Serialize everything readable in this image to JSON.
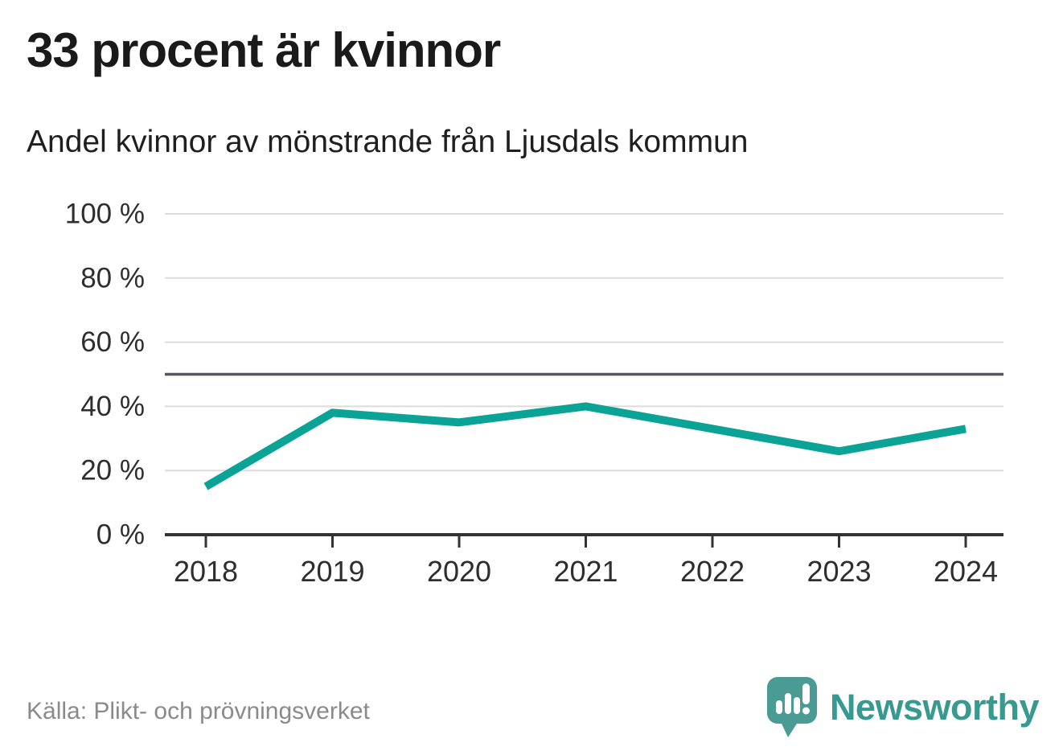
{
  "header": {
    "title": "33 procent är kvinnor",
    "subtitle": "Andel kvinnor av mönstrande från Ljusdals kommun"
  },
  "chart_data": {
    "type": "line",
    "categories": [
      "2018",
      "2019",
      "2020",
      "2021",
      "2022",
      "2023",
      "2024"
    ],
    "values": [
      15,
      38,
      35,
      40,
      33,
      26,
      33
    ],
    "unit": "%",
    "title": "33 procent är kvinnor",
    "subtitle": "Andel kvinnor av mönstrande från Ljusdals kommun",
    "xlabel": "",
    "ylabel": "",
    "ylim": [
      0,
      100
    ],
    "yticks": [
      0,
      20,
      40,
      60,
      80,
      100
    ],
    "ytick_labels": [
      "0 %",
      "20 %",
      "40 %",
      "60 %",
      "80 %",
      "100 %"
    ],
    "reference_line": 50,
    "grid": "horizontal",
    "legend": "none",
    "line_color": "#0aa396",
    "reference_line_color": "#54565b",
    "gridline_color": "#dcdcdc",
    "axis_color": "#333333",
    "tick_label_color": "#2e2e2e"
  },
  "footer": {
    "source": "Källa: Plikt- och prövningsverket",
    "brand": "Newsworthy",
    "brand_color": "#37998f",
    "logo_icon": "bar-chart-speech-bubble"
  }
}
